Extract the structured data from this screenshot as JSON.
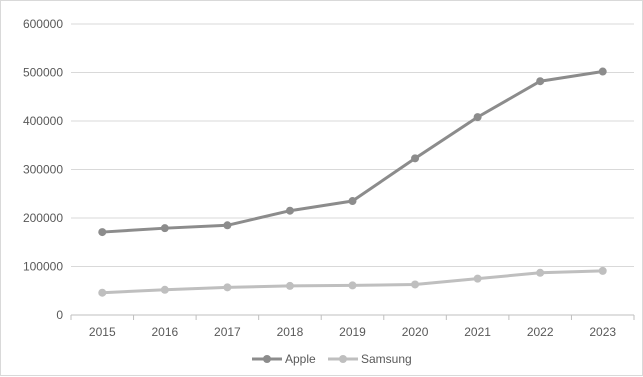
{
  "chart_data": {
    "type": "line",
    "title": "",
    "xlabel": "",
    "ylabel": "",
    "x": [
      "2015",
      "2016",
      "2017",
      "2018",
      "2019",
      "2020",
      "2021",
      "2022",
      "2023"
    ],
    "ylim": [
      0,
      600000
    ],
    "yticks": [
      "0",
      "100000",
      "200000",
      "300000",
      "400000",
      "500000",
      "600000"
    ],
    "grid": true,
    "legend": "bottom",
    "series": [
      {
        "name": "Apple",
        "color": "#8c8c8c",
        "values": [
          171000,
          179000,
          185000,
          215000,
          235000,
          323000,
          408000,
          482000,
          502000
        ]
      },
      {
        "name": "Samsung",
        "color": "#bfbfbf",
        "values": [
          46000,
          52000,
          57000,
          60000,
          61000,
          63000,
          75000,
          87000,
          91000
        ]
      }
    ]
  }
}
